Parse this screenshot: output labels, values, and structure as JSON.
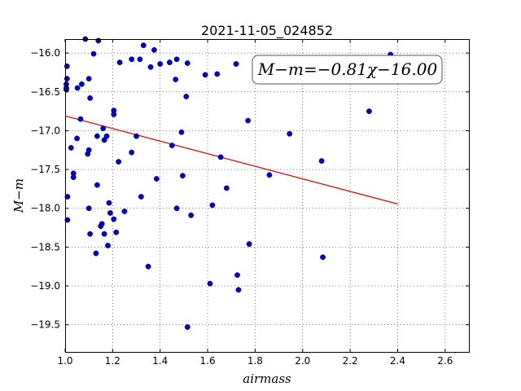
{
  "chart_data": {
    "type": "scatter",
    "title": "2021-11-05_024852",
    "xlabel": "airmass",
    "ylabel": "M−m",
    "xlim": [
      1.0,
      2.7
    ],
    "ylim": [
      -19.85,
      -15.82
    ],
    "y_inverted": true,
    "grid": true,
    "xticks": [
      1.0,
      1.2,
      1.4,
      1.6,
      1.8,
      2.0,
      2.2,
      2.4,
      2.6
    ],
    "xtick_labels": [
      "1.0",
      "1.2",
      "1.4",
      "1.6",
      "1.8",
      "2.0",
      "2.2",
      "2.4",
      "2.6"
    ],
    "yticks": [
      -16.0,
      -16.5,
      -17.0,
      -17.5,
      -18.0,
      -18.5,
      -19.0,
      -19.5
    ],
    "ytick_labels": [
      "−16.0",
      "−16.5",
      "−17.0",
      "−17.5",
      "−18.0",
      "−18.5",
      "−19.0",
      "−19.5"
    ],
    "annotation": "M−m=−0.81χ−16.00",
    "colors": {
      "points": "#0000cc",
      "fit": "#dd0000"
    },
    "fit": {
      "slope": -0.81,
      "intercept": -16.0,
      "x": [
        1.0,
        2.4
      ]
    },
    "points": [
      [
        1.005,
        -16.4
      ],
      [
        1.005,
        -16.45
      ],
      [
        1.005,
        -16.47
      ],
      [
        1.008,
        -16.17
      ],
      [
        1.008,
        -16.33
      ],
      [
        1.01,
        -17.85
      ],
      [
        1.01,
        -18.15
      ],
      [
        1.025,
        -17.22
      ],
      [
        1.035,
        -17.55
      ],
      [
        1.035,
        -17.6
      ],
      [
        1.05,
        -17.1
      ],
      [
        1.052,
        -16.45
      ],
      [
        1.065,
        -16.85
      ],
      [
        1.07,
        -16.4
      ],
      [
        1.085,
        -15.82
      ],
      [
        1.095,
        -17.3
      ],
      [
        1.1,
        -16.33
      ],
      [
        1.1,
        -17.25
      ],
      [
        1.1,
        -18.0
      ],
      [
        1.105,
        -18.33
      ],
      [
        1.105,
        -16.58
      ],
      [
        1.12,
        -16.01
      ],
      [
        1.13,
        -18.58
      ],
      [
        1.135,
        -17.07
      ],
      [
        1.135,
        -17.7
      ],
      [
        1.14,
        -15.84
      ],
      [
        1.15,
        -18.23
      ],
      [
        1.155,
        -18.2
      ],
      [
        1.16,
        -16.97
      ],
      [
        1.165,
        -17.12
      ],
      [
        1.165,
        -18.33
      ],
      [
        1.175,
        -17.07
      ],
      [
        1.18,
        -18.48
      ],
      [
        1.185,
        -17.93
      ],
      [
        1.19,
        -18.06
      ],
      [
        1.205,
        -16.74
      ],
      [
        1.205,
        -16.79
      ],
      [
        1.205,
        -18.14
      ],
      [
        1.215,
        -18.31
      ],
      [
        1.225,
        -17.4
      ],
      [
        1.23,
        -16.12
      ],
      [
        1.25,
        -18.04
      ],
      [
        1.28,
        -16.08
      ],
      [
        1.28,
        -17.28
      ],
      [
        1.3,
        -17.07
      ],
      [
        1.315,
        -16.08
      ],
      [
        1.32,
        -17.85
      ],
      [
        1.33,
        -15.9
      ],
      [
        1.35,
        -18.75
      ],
      [
        1.36,
        -16.18
      ],
      [
        1.375,
        -15.96
      ],
      [
        1.385,
        -17.62
      ],
      [
        1.4,
        -16.14
      ],
      [
        1.44,
        -16.12
      ],
      [
        1.45,
        -17.19
      ],
      [
        1.465,
        -16.34
      ],
      [
        1.47,
        -16.08
      ],
      [
        1.47,
        -18.0
      ],
      [
        1.49,
        -17.02
      ],
      [
        1.495,
        -17.58
      ],
      [
        1.51,
        -16.56
      ],
      [
        1.515,
        -16.13
      ],
      [
        1.515,
        -19.53
      ],
      [
        1.53,
        -18.09
      ],
      [
        1.59,
        -16.28
      ],
      [
        1.61,
        -18.97
      ],
      [
        1.62,
        -17.96
      ],
      [
        1.64,
        -16.27
      ],
      [
        1.655,
        -17.34
      ],
      [
        1.68,
        -17.74
      ],
      [
        1.72,
        -16.14
      ],
      [
        1.725,
        -18.86
      ],
      [
        1.73,
        -19.05
      ],
      [
        1.77,
        -16.87
      ],
      [
        1.775,
        -18.46
      ],
      [
        1.86,
        -17.57
      ],
      [
        1.945,
        -17.04
      ],
      [
        2.08,
        -17.39
      ],
      [
        2.085,
        -18.63
      ],
      [
        2.28,
        -16.75
      ],
      [
        2.37,
        -16.02
      ]
    ]
  }
}
